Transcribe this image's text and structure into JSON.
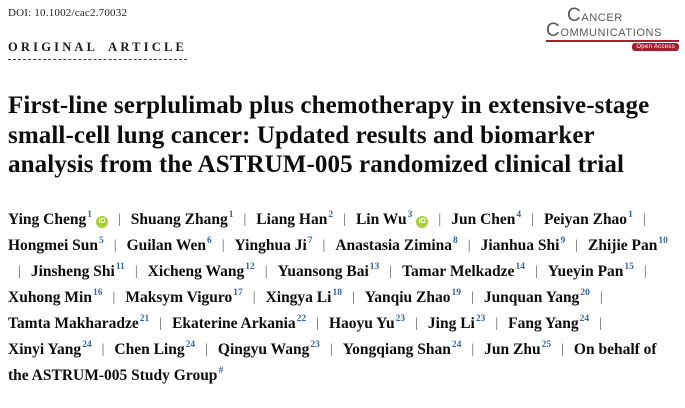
{
  "header": {
    "doi": "DOI: 10.1002/cac2.70032",
    "article_type": "ORIGINAL ARTICLE",
    "journal_logo": {
      "line1": "Cancer",
      "line2": "Communications",
      "badge": "Open Access",
      "text_color": "#58595b",
      "accent_color": "#a81e2d"
    }
  },
  "title": "First-line serplulimab plus chemotherapy in extensive-stage small-cell lung cancer: Updated results and biomarker analysis from the ASTRUM-005 randomized clinical trial",
  "authors": {
    "separator": "|",
    "superscript_color": "#35679f",
    "orcid_color": "#a6ce39",
    "orcid_label": "iD",
    "list": [
      {
        "name": "Ying Cheng",
        "sup": "1",
        "orcid": true
      },
      {
        "name": "Shuang Zhang",
        "sup": "1",
        "orcid": false
      },
      {
        "name": "Liang Han",
        "sup": "2",
        "orcid": false
      },
      {
        "name": "Lin Wu",
        "sup": "3",
        "orcid": true
      },
      {
        "name": "Jun Chen",
        "sup": "4",
        "orcid": false
      },
      {
        "name": "Peiyan Zhao",
        "sup": "1",
        "orcid": false
      },
      {
        "name": "Hongmei Sun",
        "sup": "5",
        "orcid": false
      },
      {
        "name": "Guilan Wen",
        "sup": "6",
        "orcid": false
      },
      {
        "name": "Yinghua Ji",
        "sup": "7",
        "orcid": false
      },
      {
        "name": "Anastasia Zimina",
        "sup": "8",
        "orcid": false
      },
      {
        "name": "Jianhua Shi",
        "sup": "9",
        "orcid": false
      },
      {
        "name": "Zhijie Pan",
        "sup": "10",
        "orcid": false
      },
      {
        "name": "Jinsheng Shi",
        "sup": "11",
        "orcid": false
      },
      {
        "name": "Xicheng Wang",
        "sup": "12",
        "orcid": false
      },
      {
        "name": "Yuansong Bai",
        "sup": "13",
        "orcid": false
      },
      {
        "name": "Tamar Melkadze",
        "sup": "14",
        "orcid": false
      },
      {
        "name": "Yueyin Pan",
        "sup": "15",
        "orcid": false
      },
      {
        "name": "Xuhong Min",
        "sup": "16",
        "orcid": false
      },
      {
        "name": "Maksym Viguro",
        "sup": "17",
        "orcid": false
      },
      {
        "name": "Xingya Li",
        "sup": "18",
        "orcid": false
      },
      {
        "name": "Yanqiu Zhao",
        "sup": "19",
        "orcid": false
      },
      {
        "name": "Junquan Yang",
        "sup": "20",
        "orcid": false
      },
      {
        "name": "Tamta Makharadze",
        "sup": "21",
        "orcid": false
      },
      {
        "name": "Ekaterine Arkania",
        "sup": "22",
        "orcid": false
      },
      {
        "name": "Haoyu Yu",
        "sup": "23",
        "orcid": false
      },
      {
        "name": "Jing Li",
        "sup": "23",
        "orcid": false
      },
      {
        "name": "Fang Yang",
        "sup": "24",
        "orcid": false
      },
      {
        "name": "Xinyi Yang",
        "sup": "24",
        "orcid": false
      },
      {
        "name": "Chen Ling",
        "sup": "24",
        "orcid": false
      },
      {
        "name": "Qingyu Wang",
        "sup": "23",
        "orcid": false
      },
      {
        "name": "Yongqiang Shan",
        "sup": "24",
        "orcid": false
      },
      {
        "name": "Jun Zhu",
        "sup": "25",
        "orcid": false
      }
    ],
    "group_note": {
      "text": "On behalf of the ASTRUM-005 Study Group",
      "sup": "#"
    }
  }
}
